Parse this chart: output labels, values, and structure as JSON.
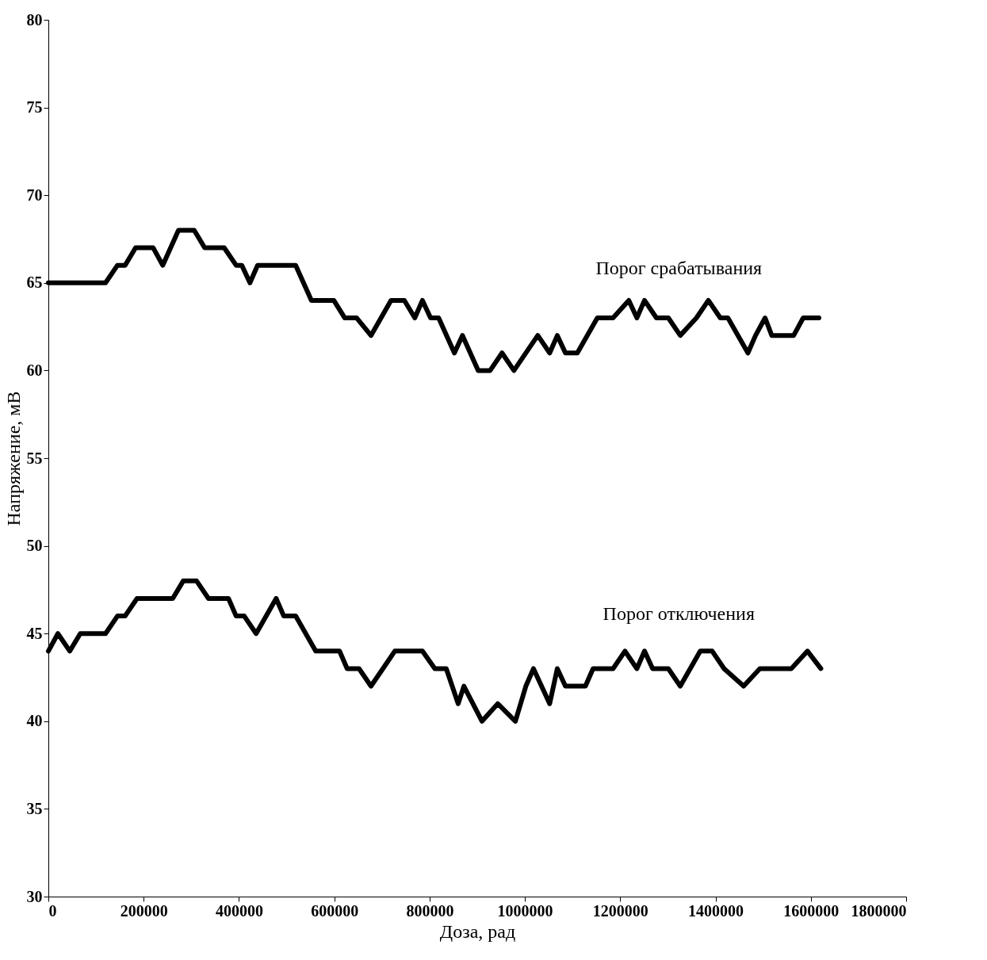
{
  "chart_data": {
    "type": "line",
    "xlabel": "Доза, рад",
    "ylabel": "Напряжение, мВ",
    "xlim": [
      0,
      1800000
    ],
    "xticks": [
      0,
      200000,
      400000,
      600000,
      800000,
      1000000,
      1200000,
      1400000,
      1600000,
      1800000
    ],
    "ylim": [
      30,
      80
    ],
    "yticks": [
      30,
      35,
      40,
      45,
      50,
      55,
      60,
      65,
      70,
      75,
      80
    ],
    "grid": false,
    "legend": false,
    "marker": "none",
    "line_style": "solid",
    "series": [
      {
        "name": "Порог срабатывания",
        "color": "#000000",
        "x": [
          0,
          120000,
          145000,
          161000,
          183000,
          220000,
          240000,
          273000,
          306000,
          328000,
          369000,
          394000,
          406000,
          423000,
          439000,
          519000,
          552000,
          599000,
          622000,
          647000,
          677000,
          719000,
          747000,
          769000,
          785000,
          802000,
          819000,
          852000,
          869000,
          902000,
          927000,
          952000,
          977000,
          1027000,
          1052000,
          1068000,
          1085000,
          1110000,
          1152000,
          1185000,
          1218000,
          1235000,
          1251000,
          1276000,
          1301000,
          1326000,
          1360000,
          1385000,
          1410000,
          1426000,
          1468000,
          1484000,
          1504000,
          1518000,
          1564000,
          1584000,
          1617000
        ],
        "values": [
          65,
          65,
          66,
          66,
          67,
          67,
          66,
          68,
          68,
          67,
          67,
          66,
          66,
          65,
          66,
          66,
          64,
          64,
          63,
          63,
          62,
          64,
          64,
          63,
          64,
          63,
          63,
          61,
          62,
          60,
          60,
          61,
          60,
          62,
          61,
          62,
          61,
          61,
          63,
          63,
          64,
          63,
          64,
          63,
          63,
          62,
          63,
          64,
          63,
          63,
          61,
          62,
          63,
          62,
          62,
          63,
          63
        ]
      },
      {
        "name": "Порог отключения",
        "color": "#000000",
        "x": [
          0,
          20000,
          45000,
          67000,
          120000,
          145000,
          161000,
          186000,
          261000,
          283000,
          311000,
          336000,
          378000,
          394000,
          411000,
          436000,
          478000,
          494000,
          519000,
          561000,
          611000,
          627000,
          652000,
          677000,
          702000,
          727000,
          785000,
          811000,
          835000,
          860000,
          872000,
          910000,
          943000,
          980000,
          1002000,
          1018000,
          1052000,
          1068000,
          1085000,
          1127000,
          1143000,
          1185000,
          1210000,
          1235000,
          1251000,
          1268000,
          1301000,
          1326000,
          1368000,
          1393000,
          1418000,
          1459000,
          1493000,
          1559000,
          1593000,
          1621000
        ],
        "values": [
          44,
          45,
          44,
          45,
          45,
          46,
          46,
          47,
          47,
          48,
          48,
          47,
          47,
          46,
          46,
          45,
          47,
          46,
          46,
          44,
          44,
          43,
          43,
          42,
          43,
          44,
          44,
          43,
          43,
          41,
          42,
          40,
          41,
          40,
          42,
          43,
          41,
          43,
          42,
          42,
          43,
          43,
          44,
          43,
          44,
          43,
          43,
          42,
          44,
          44,
          43,
          42,
          43,
          43,
          44,
          43
        ]
      }
    ]
  }
}
